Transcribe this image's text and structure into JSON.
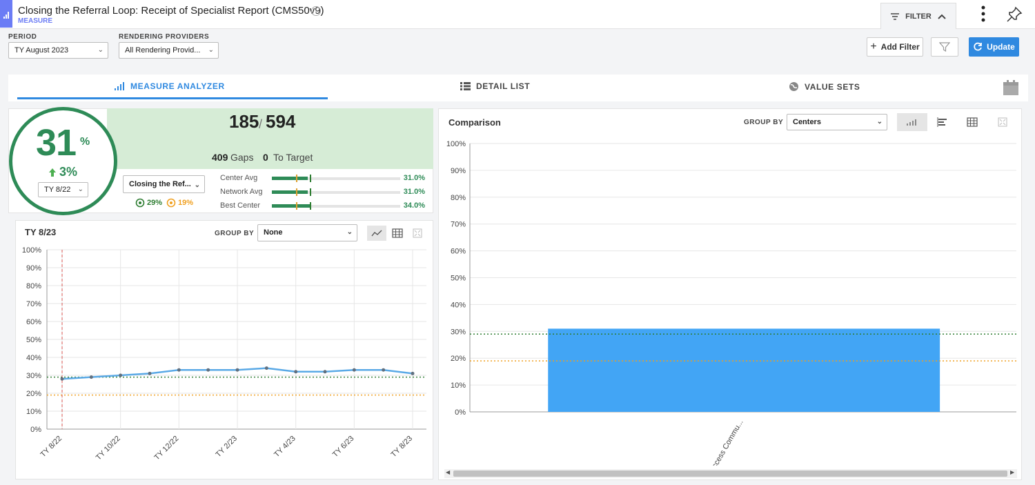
{
  "app": {
    "title": "Closing the Referral Loop: Receipt of Specialist Report (CMS50v9)",
    "subtitle": "MEASURE",
    "filter_label": "FILTER"
  },
  "filters": {
    "period_label": "PERIOD",
    "period_value": "TY August 2023",
    "providers_label": "RENDERING PROVIDERS",
    "providers_value": "All Rendering Provid...",
    "add_filter": "Add Filter",
    "update": "Update"
  },
  "tabs": [
    {
      "label": "MEASURE ANALYZER",
      "active": true
    },
    {
      "label": "DETAIL LIST",
      "active": false
    },
    {
      "label": "VALUE SETS",
      "active": false
    }
  ],
  "kpi": {
    "percent": "31",
    "percent_sign": "%",
    "change": "3%",
    "compare_period": "TY 8/22",
    "numerator": "185",
    "separator": "/",
    "denominator": "594",
    "gaps_value": "409",
    "gaps_label": "Gaps",
    "target_value": "0",
    "target_label": "To Target",
    "measure_select": "Closing the Ref...",
    "target_green": "29%",
    "target_orange": "19%",
    "benchmarks": [
      {
        "label": "Center Avg",
        "value": "31.0%",
        "fraction": 0.31
      },
      {
        "label": "Network Avg",
        "value": "31.0%",
        "fraction": 0.31
      },
      {
        "label": "Best Center",
        "value": "34.0%",
        "fraction": 0.34
      }
    ]
  },
  "trend": {
    "title": "TY 8/23",
    "group_by_label": "GROUP BY",
    "group_by_value": "None"
  },
  "comparison": {
    "title": "Comparison",
    "group_by_label": "GROUP BY",
    "group_by_value": "Centers"
  },
  "colors": {
    "accent": "#2f89e0",
    "good": "#2e8b57",
    "line": "#5aa9e6",
    "bar": "#42a5f5",
    "target_green": "#2e7d32",
    "target_orange": "#f0a020",
    "marker": "#e0a030"
  },
  "chart_data": [
    {
      "type": "line",
      "title": "TY 8/23",
      "x": [
        "TY 8/22",
        "TY 9/22",
        "TY 10/22",
        "TY 11/22",
        "TY 12/22",
        "TY 1/23",
        "TY 2/23",
        "TY 3/23",
        "TY 4/23",
        "TY 5/23",
        "TY 6/23",
        "TY 7/23",
        "TY 8/23"
      ],
      "x_tick_labels": [
        "TY 8/22",
        "TY 10/22",
        "TY 12/22",
        "TY 2/23",
        "TY 4/23",
        "TY 6/23",
        "TY 8/23"
      ],
      "series": [
        {
          "values": [
            28,
            29,
            30,
            31,
            33,
            33,
            33,
            34,
            32,
            32,
            33,
            33,
            31
          ]
        }
      ],
      "ylim": [
        0,
        100
      ],
      "y_ticks": [
        "0%",
        "10%",
        "20%",
        "30%",
        "40%",
        "50%",
        "60%",
        "70%",
        "80%",
        "90%",
        "100%"
      ],
      "reference_lines": [
        29,
        19
      ],
      "marker_x": "TY 8/22",
      "grid": true
    },
    {
      "type": "bar",
      "title": "Comparison",
      "categories": [
        "Access Commu..."
      ],
      "values": [
        31
      ],
      "ylim": [
        0,
        100
      ],
      "y_ticks": [
        "0%",
        "10%",
        "20%",
        "30%",
        "40%",
        "50%",
        "60%",
        "70%",
        "80%",
        "90%",
        "100%"
      ],
      "reference_lines": [
        29,
        19
      ],
      "grid": true
    }
  ]
}
